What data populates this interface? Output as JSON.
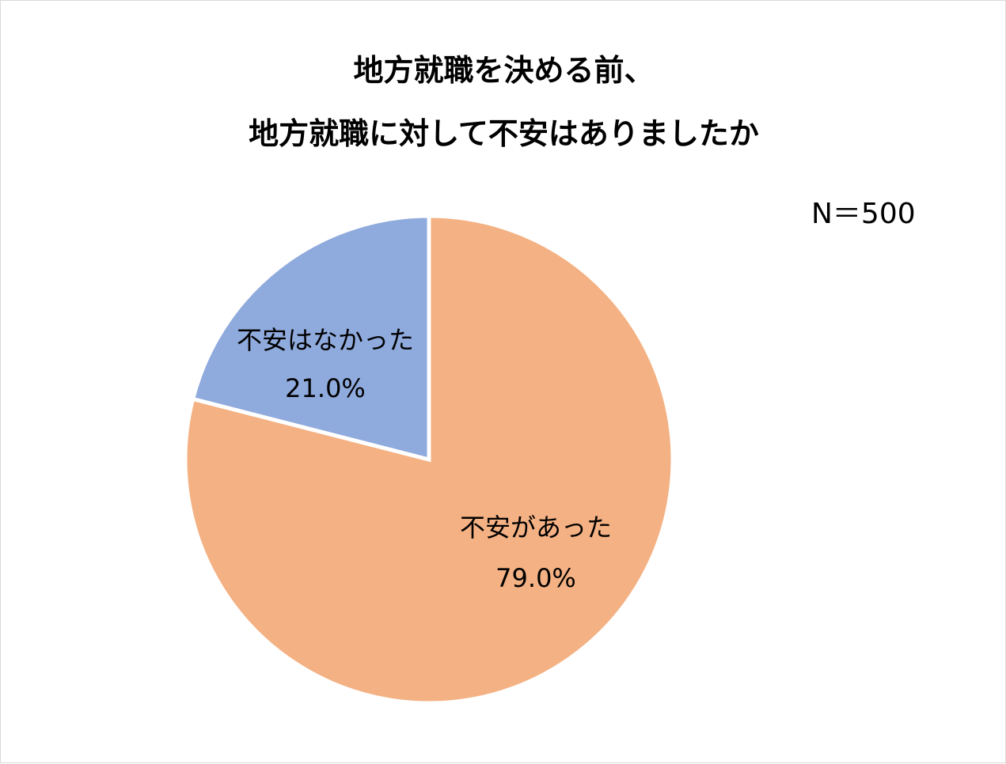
{
  "chart_data": {
    "type": "pie",
    "title_lines": [
      "地方就職を決める前、",
      "地方就職に対して不安はありましたか"
    ],
    "sample_note": "N＝500",
    "start_angle_deg": 0,
    "direction": "clockwise",
    "slices": [
      {
        "name": "不安があった",
        "value": 79.0,
        "label": "79.0%",
        "color": "#F4B183"
      },
      {
        "name": "不安はなかった",
        "value": 21.0,
        "label": "21.0%",
        "color": "#8FAADC"
      }
    ],
    "legend": "none"
  }
}
